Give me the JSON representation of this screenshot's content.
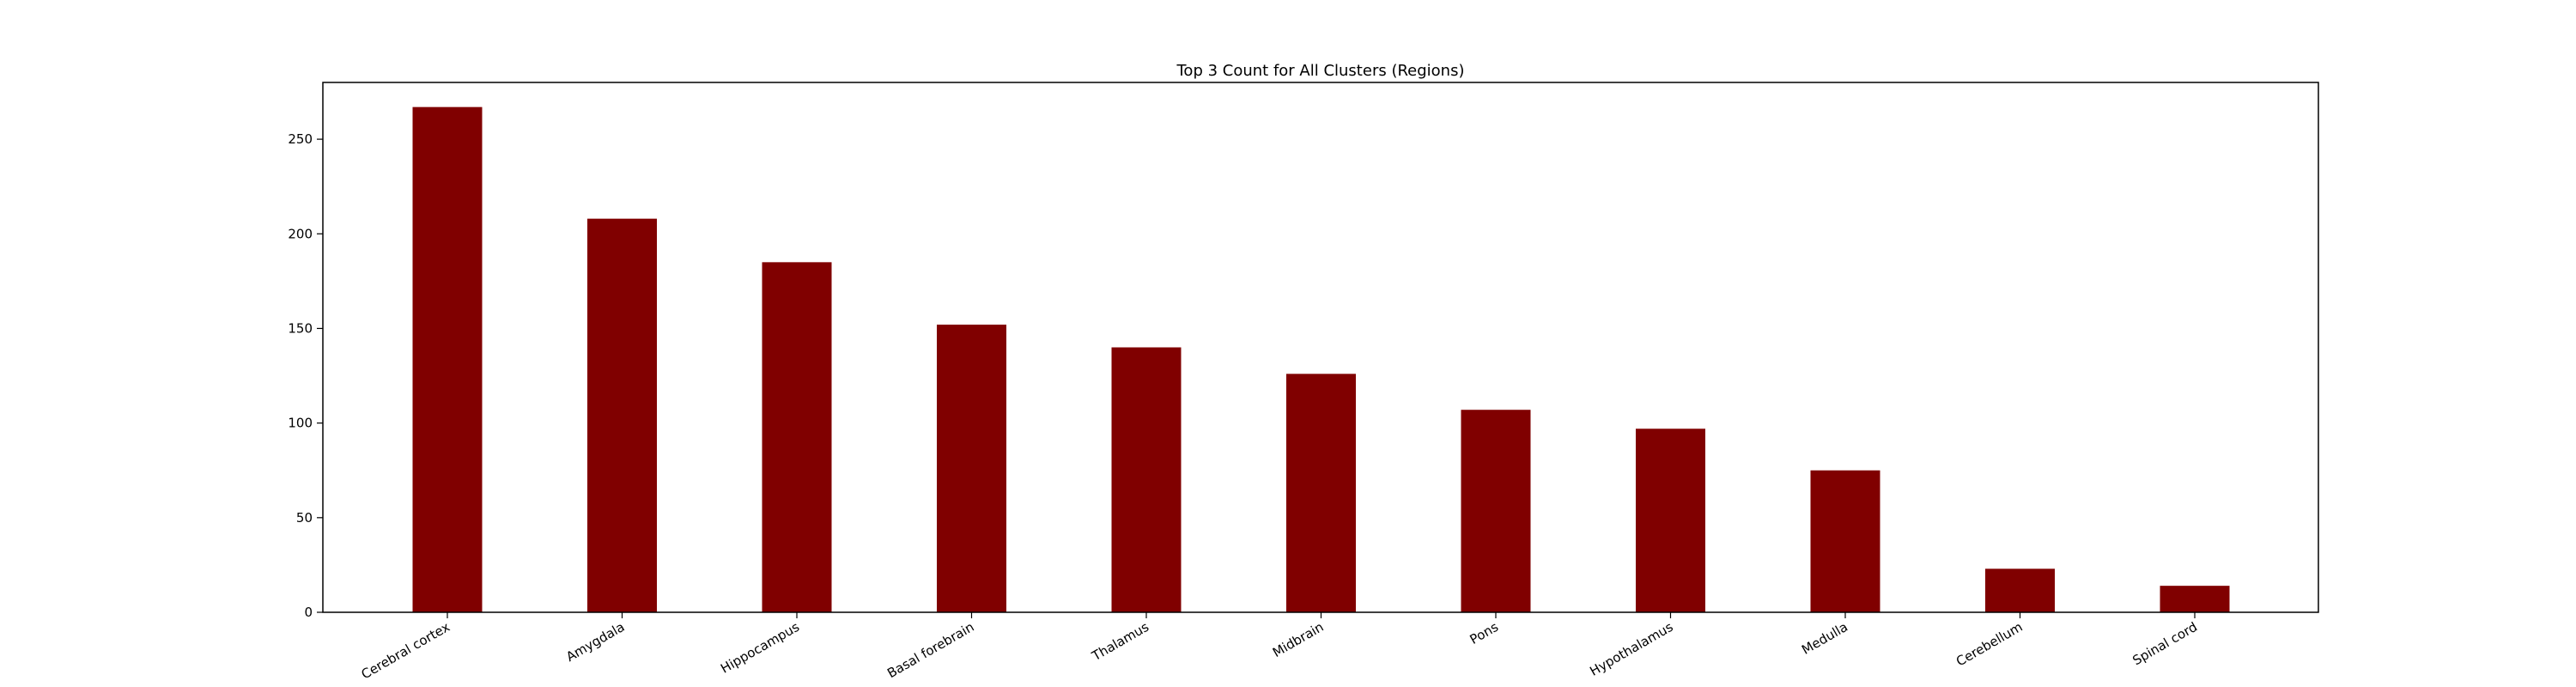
{
  "chart_data": {
    "type": "bar",
    "title": "Top 3 Count for All Clusters (Regions)",
    "xlabel": "",
    "ylabel": "",
    "categories": [
      "Cerebral cortex",
      "Amygdala",
      "Hippocampus",
      "Basal forebrain",
      "Thalamus",
      "Midbrain",
      "Pons",
      "Hypothalamus",
      "Medulla",
      "Cerebellum",
      "Spinal cord"
    ],
    "values": [
      267,
      208,
      185,
      152,
      140,
      126,
      107,
      97,
      75,
      23,
      14
    ],
    "ylim": [
      0,
      280
    ],
    "yticks": [
      0,
      50,
      100,
      150,
      200,
      250
    ],
    "bar_color": "#800000",
    "grid": false,
    "legend": false
  }
}
